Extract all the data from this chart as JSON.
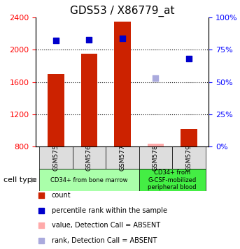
{
  "title": "GDS53 / X86779_at",
  "samples": [
    "GSM575",
    "GSM576",
    "GSM577",
    "GSM578",
    "GSM579"
  ],
  "bar_values": [
    1700,
    1950,
    2350,
    null,
    1020
  ],
  "bar_values_absent": [
    null,
    null,
    null,
    840,
    null
  ],
  "percentile_ranks": [
    82,
    83,
    84,
    null,
    68
  ],
  "percentile_ranks_absent": [
    null,
    null,
    null,
    53,
    null
  ],
  "bar_color": "#cc2200",
  "bar_absent_color": "#ffaaaa",
  "rank_color": "#0000cc",
  "rank_absent_color": "#aaaadd",
  "ylim_left": [
    800,
    2400
  ],
  "ylim_right": [
    0,
    100
  ],
  "yticks_left": [
    800,
    1200,
    1600,
    2000,
    2400
  ],
  "yticks_right": [
    0,
    25,
    50,
    75,
    100
  ],
  "grid_lines": [
    1200,
    1600,
    2000
  ],
  "cell_type_groups": [
    {
      "label": "CD34+ from bone marrow",
      "samples": [
        "GSM575",
        "GSM576",
        "GSM577"
      ],
      "color": "#aaffaa"
    },
    {
      "label": "CD34+ from\nG-CSF-mobilized\nperipheral blood",
      "samples": [
        "GSM578",
        "GSM579"
      ],
      "color": "#44ee44"
    }
  ],
  "legend_items": [
    {
      "label": "count",
      "color": "#cc2200"
    },
    {
      "label": "percentile rank within the sample",
      "color": "#0000cc"
    },
    {
      "label": "value, Detection Call = ABSENT",
      "color": "#ffaaaa"
    },
    {
      "label": "rank, Detection Call = ABSENT",
      "color": "#aaaadd"
    }
  ],
  "bar_width": 0.5
}
